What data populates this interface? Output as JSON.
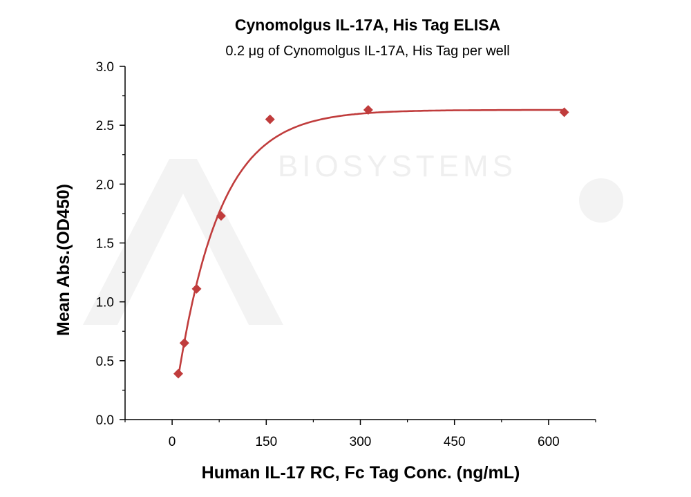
{
  "chart_data": {
    "type": "scatter",
    "title": "Cynomolgus IL-17A, His Tag ELISA",
    "subtitle": "0.2 μg of Cynomolgus IL-17A, His Tag per well",
    "xlabel": "Human IL-17 RC, Fc Tag Conc. (ng/mL)",
    "ylabel": "Mean Abs.(OD450)",
    "xlim": [
      -75,
      675
    ],
    "ylim": [
      0,
      3.0
    ],
    "x_ticks": [
      0,
      150,
      300,
      450,
      600
    ],
    "x_tick_labels": [
      "0",
      "150",
      "300",
      "450",
      "600"
    ],
    "y_ticks": [
      0,
      0.5,
      1.0,
      1.5,
      2.0,
      2.5,
      3.0
    ],
    "y_tick_labels": [
      "0.0",
      "0.5",
      "1.0",
      "1.5",
      "2.0",
      "2.5",
      "3.0"
    ],
    "grid": false,
    "series": [
      {
        "x": [
          9.8,
          19.5,
          39,
          78,
          156,
          312.5,
          625
        ],
        "y": [
          0.39,
          0.65,
          1.11,
          1.73,
          2.55,
          2.63,
          2.61
        ],
        "marker": "diamond",
        "color": "#c03c3c",
        "fit_curve": true,
        "fit_color": "#c03c3c"
      }
    ],
    "watermark_text": "BIOSYSTEMS"
  }
}
